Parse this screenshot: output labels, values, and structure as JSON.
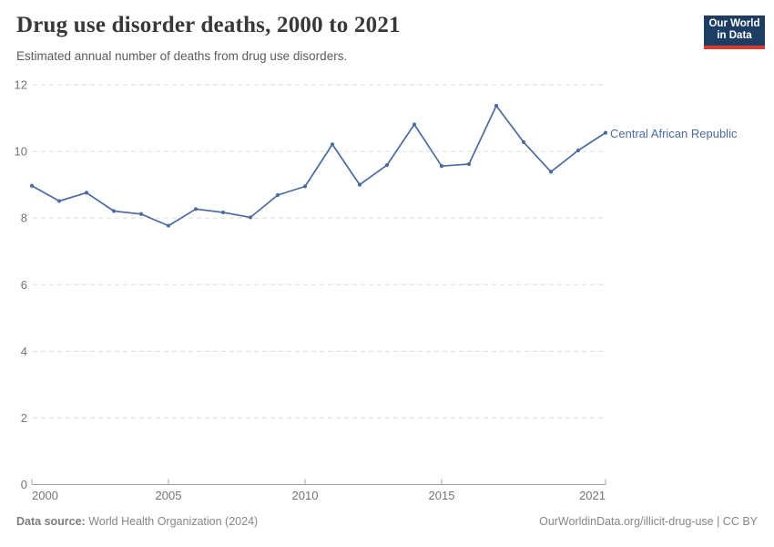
{
  "header": {
    "title": "Drug use disorder deaths, 2000 to 2021",
    "subtitle": "Estimated annual number of deaths from drug use disorders.",
    "logo": {
      "line1": "Our World",
      "line2": "in Data",
      "bg_color": "#1d3d63",
      "accent_color": "#d93a34"
    }
  },
  "chart_data": {
    "type": "line",
    "title": "Drug use disorder deaths, 2000 to 2021",
    "subtitle": "Estimated annual number of deaths from drug use disorders.",
    "xlabel": "",
    "ylabel": "",
    "ylim": [
      0,
      12
    ],
    "yticks": [
      0,
      2,
      4,
      6,
      8,
      10,
      12
    ],
    "xticks": [
      2000,
      2005,
      2010,
      2015,
      2021
    ],
    "grid": "horizontal-dashed",
    "legend_position": "end-of-line-label",
    "grid_color": "#dcdcdc",
    "axis_color": "#a3a3a3",
    "series": [
      {
        "name": "Central African Republic",
        "color": "#4c6b9e",
        "x": [
          2000,
          2001,
          2002,
          2003,
          2004,
          2005,
          2006,
          2007,
          2008,
          2009,
          2010,
          2011,
          2012,
          2013,
          2014,
          2015,
          2016,
          2017,
          2018,
          2019,
          2020,
          2021
        ],
        "values": [
          8.97,
          8.51,
          8.76,
          8.21,
          8.12,
          7.77,
          8.27,
          8.17,
          8.02,
          8.69,
          8.95,
          10.21,
          9.0,
          9.59,
          10.81,
          9.56,
          9.62,
          11.37,
          10.28,
          9.39,
          10.03,
          10.56
        ]
      }
    ]
  },
  "footer": {
    "source_label": "Data source:",
    "source_value": " World Health Organization (2024)",
    "link": "OurWorldinData.org/illicit-drug-use | CC BY"
  }
}
